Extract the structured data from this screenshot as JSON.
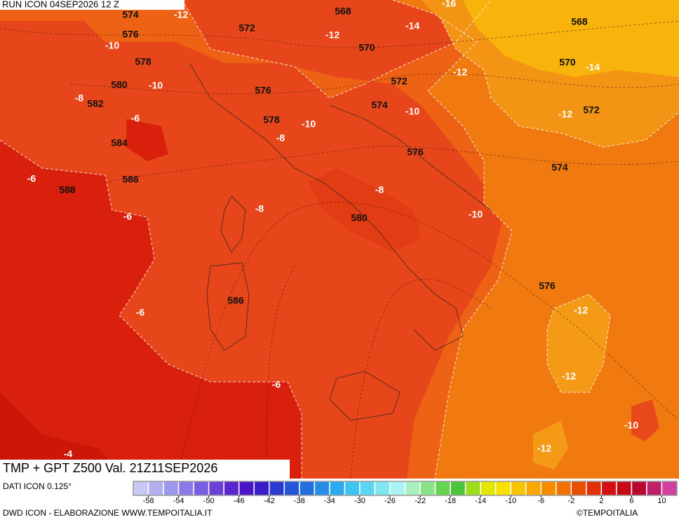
{
  "run_label": "RUN ICON 04SEP2026 12 Z",
  "title": "TMP + GPT Z500 Val. 21Z11SEP2026",
  "map": {
    "height_labels": [
      574,
      576,
      578,
      580,
      582,
      584,
      586,
      588,
      568,
      572,
      570,
      576,
      578,
      572,
      574,
      576,
      568,
      570,
      572,
      574,
      580,
      586,
      576
    ],
    "temperature_labels": [
      -12,
      -10,
      -8,
      -6,
      -10,
      -6,
      -6,
      -6,
      -6,
      -4,
      -12,
      -14,
      -16,
      -12,
      -14,
      -10,
      -8,
      -10,
      -12,
      -8,
      -8,
      -10,
      -12,
      -12,
      -10,
      -12
    ]
  },
  "colorbar": {
    "range": [
      -60,
      12
    ],
    "ticks": [
      -58,
      -54,
      -50,
      -46,
      -42,
      -38,
      -34,
      -30,
      -26,
      -22,
      -18,
      -14,
      -10,
      -6,
      -2,
      2,
      6,
      10
    ],
    "colors": [
      "#c8c8f4",
      "#b4b0f0",
      "#9c98ec",
      "#8a7ae6",
      "#7a5ce0",
      "#6a40d8",
      "#5a24d0",
      "#4a14c8",
      "#3a1cc8",
      "#2a3ad0",
      "#2454d8",
      "#2270e0",
      "#268ce8",
      "#2ca8ee",
      "#3cc4f2",
      "#5ad6f2",
      "#80e6f2",
      "#a8f2f2",
      "#a8f0c0",
      "#88e488",
      "#66d450",
      "#4cc43c",
      "#9cdc1c",
      "#e4e800",
      "#f8e000",
      "#f8c400",
      "#f8a800",
      "#f88c00",
      "#f07000",
      "#e85000",
      "#e03008",
      "#d41010",
      "#c80818",
      "#b80830",
      "#c02068",
      "#d040a0"
    ],
    "left_label": "DATI ICON 0.125°"
  },
  "footer": {
    "left": "DWD ICON - ELABORAZIONE WWW.TEMPOITALIA.IT",
    "right": "©TEMPOITALIA"
  }
}
